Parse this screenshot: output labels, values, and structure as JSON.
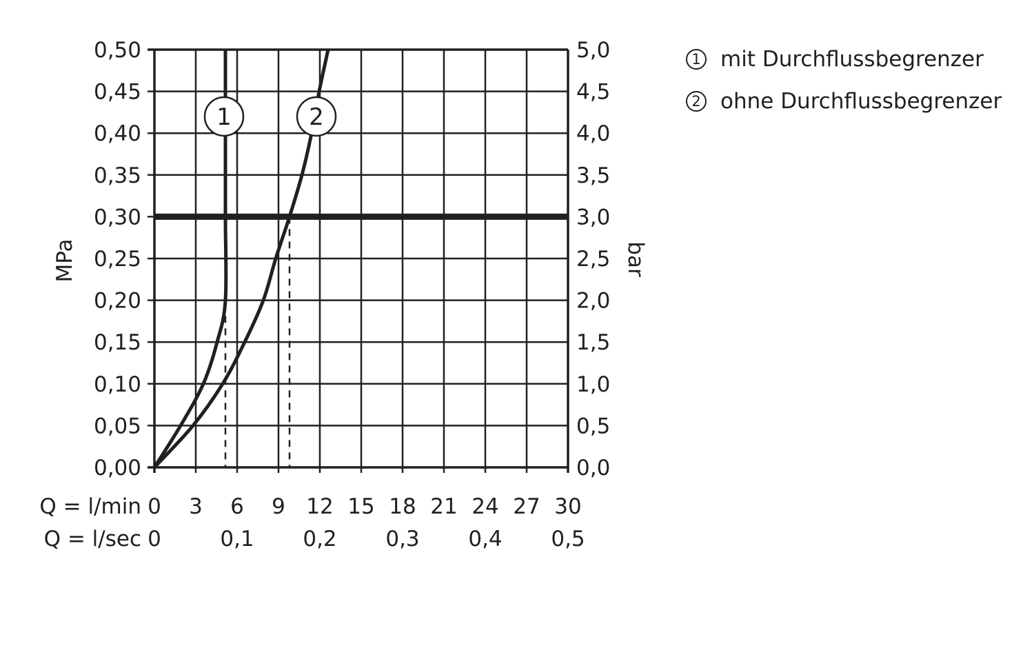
{
  "chart_data": {
    "type": "line",
    "title": "",
    "ylabel": "MPa",
    "ylabel_right": "bar",
    "xlabel_rows": [
      "Q = l/min",
      "Q = l/sec"
    ],
    "xlim": [
      0,
      30
    ],
    "ylim": [
      0,
      0.5
    ],
    "ylim_right": [
      0,
      5
    ],
    "x_ticks": [
      "0",
      "3",
      "6",
      "9",
      "12",
      "15",
      "18",
      "21",
      "24",
      "27",
      "30"
    ],
    "x_ticks_sec": [
      {
        "at": 0,
        "label": "0"
      },
      {
        "at": 6,
        "label": "0,1"
      },
      {
        "at": 12,
        "label": "0,2"
      },
      {
        "at": 18,
        "label": "0,3"
      },
      {
        "at": 24,
        "label": "0,4"
      },
      {
        "at": 30,
        "label": "0,5"
      }
    ],
    "y_ticks": [
      "0,00",
      "0,05",
      "0,10",
      "0,15",
      "0,20",
      "0,25",
      "0,30",
      "0,35",
      "0,40",
      "0,45",
      "0,50"
    ],
    "y_ticks_right": [
      "0,0",
      "0,5",
      "1,0",
      "1,5",
      "2,0",
      "2,5",
      "3,0",
      "3,5",
      "4,0",
      "4,5",
      "5,0"
    ],
    "grid": true,
    "reference_line_y": 0.3,
    "reference_dashed_x": [
      5.15,
      9.8
    ],
    "series": [
      {
        "name": "1",
        "points": [
          [
            0,
            0
          ],
          [
            1.9,
            0.05
          ],
          [
            3.55,
            0.1
          ],
          [
            4.55,
            0.15
          ],
          [
            5.15,
            0.2
          ],
          [
            5.15,
            0.3
          ],
          [
            5.15,
            0.4
          ],
          [
            5.15,
            0.5
          ]
        ]
      },
      {
        "name": "2",
        "points": [
          [
            0,
            0
          ],
          [
            2.8,
            0.05
          ],
          [
            4.95,
            0.1
          ],
          [
            6.55,
            0.15
          ],
          [
            7.9,
            0.2
          ],
          [
            8.8,
            0.25
          ],
          [
            9.8,
            0.3
          ],
          [
            10.7,
            0.35
          ],
          [
            11.4,
            0.4
          ],
          [
            11.95,
            0.45
          ],
          [
            12.6,
            0.5
          ]
        ]
      }
    ],
    "legend": [
      {
        "num": "1",
        "label": "mit Durchflussbegrenzer"
      },
      {
        "num": "2",
        "label": "ohne Durchflussbegrenzer"
      }
    ],
    "legend_placement": "top-right",
    "line_color": "#231f20"
  }
}
